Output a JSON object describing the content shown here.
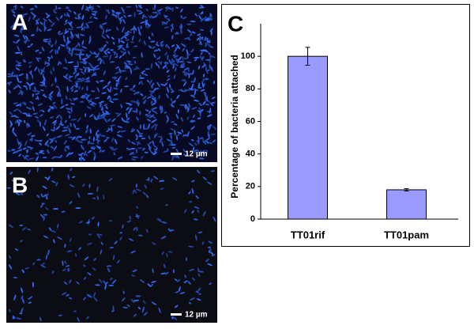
{
  "panels": [
    {
      "label": "A",
      "scale_bar": "12 µm"
    },
    {
      "label": "B",
      "scale_bar": "12 µm"
    }
  ],
  "chart_data": {
    "type": "bar",
    "panel_label": "C",
    "y_label": "Percentage of bacteria attached",
    "categories": [
      "TT01rif",
      "TT01pam"
    ],
    "values": [
      100,
      18
    ],
    "errors": [
      5.5,
      0.7
    ],
    "color": "#9999ff",
    "ylim": [
      0,
      120
    ],
    "yticks": [
      0,
      20,
      40,
      60,
      80,
      100
    ]
  }
}
